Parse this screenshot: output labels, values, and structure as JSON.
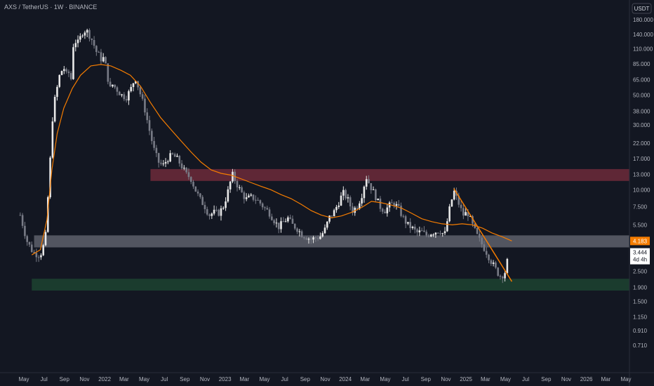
{
  "chart_data": {
    "type": "candlestick",
    "title": "AXS / TetherUS · 1W · BINANCE",
    "currency": "USDT",
    "scale": "log",
    "ylim": [
      0.6,
      190
    ],
    "y_ticks": [
      "180.000",
      "140.000",
      "110.000",
      "85.000",
      "65.000",
      "50.000",
      "38.000",
      "30.000",
      "22.000",
      "17.000",
      "13.000",
      "10.000",
      "7.500",
      "5.500",
      "4.183",
      "3.444",
      "2.500",
      "1.900",
      "1.500",
      "1.150",
      "0.910",
      "0.710"
    ],
    "y_tick_values": [
      180,
      140,
      110,
      85,
      65,
      50,
      38,
      30,
      22,
      17,
      13,
      10,
      7.5,
      5.5,
      4.183,
      3.444,
      2.5,
      1.9,
      1.5,
      1.15,
      0.91,
      0.71
    ],
    "x_ticks": [
      "May",
      "Jul",
      "Sep",
      "Nov",
      "2022",
      "Mar",
      "May",
      "Jul",
      "Sep",
      "Nov",
      "2023",
      "Mar",
      "May",
      "Jul",
      "Sep",
      "Nov",
      "2024",
      "Mar",
      "May",
      "Jul",
      "Sep",
      "Nov",
      "2025",
      "Mar",
      "May",
      "Jul",
      "Sep",
      "Nov",
      "2026",
      "Mar",
      "May"
    ],
    "x_tick_months": [
      "2021-05",
      "2021-07",
      "2021-09",
      "2021-11",
      "2022-01",
      "2022-03",
      "2022-05",
      "2022-07",
      "2022-09",
      "2022-11",
      "2023-01",
      "2023-03",
      "2023-05",
      "2023-07",
      "2023-09",
      "2023-11",
      "2024-01",
      "2024-03",
      "2024-05",
      "2024-07",
      "2024-09",
      "2024-11",
      "2025-01",
      "2025-03",
      "2025-05",
      "2025-07",
      "2025-09",
      "2025-11",
      "2026-01",
      "2026-03",
      "2026-05"
    ],
    "xlim": [
      "2021-04-15",
      "2026-06-15"
    ],
    "grid": false,
    "last_price": {
      "value": "3.444",
      "countdown": "4d 4h"
    },
    "ma_price": {
      "value": "4.183"
    },
    "zones": [
      {
        "kind": "resistance",
        "low": 11.6,
        "high": 14.2,
        "start": "2022-05-20",
        "end": "2026-06-15",
        "color": "#7a2e3d"
      },
      {
        "kind": "support",
        "low": 3.75,
        "high": 4.6,
        "start": "2021-06-01",
        "end": "2026-06-15",
        "color": "#868993"
      },
      {
        "kind": "demand",
        "low": 1.8,
        "high": 2.2,
        "start": "2021-05-25",
        "end": "2026-06-15",
        "color": "#1f4a33"
      }
    ],
    "trendline": {
      "from": {
        "date": "2024-11-25",
        "value": 10.2
      },
      "to": {
        "date": "2025-05-20",
        "value": 2.1
      },
      "color": "#f57c00"
    },
    "moving_average": {
      "color": "#f57c00",
      "points": [
        [
          "2021-05-25",
          3.3
        ],
        [
          "2021-06-20",
          3.6
        ],
        [
          "2021-07-10",
          6
        ],
        [
          "2021-07-25",
          14
        ],
        [
          "2021-08-10",
          26
        ],
        [
          "2021-08-30",
          40
        ],
        [
          "2021-09-25",
          56
        ],
        [
          "2021-10-20",
          70
        ],
        [
          "2021-11-20",
          82
        ],
        [
          "2021-12-20",
          84
        ],
        [
          "2022-01-20",
          82
        ],
        [
          "2022-02-20",
          76
        ],
        [
          "2022-03-20",
          70
        ],
        [
          "2022-04-20",
          58
        ],
        [
          "2022-05-20",
          44
        ],
        [
          "2022-06-20",
          34
        ],
        [
          "2022-07-20",
          28
        ],
        [
          "2022-08-20",
          23
        ],
        [
          "2022-09-20",
          19
        ],
        [
          "2022-10-20",
          16
        ],
        [
          "2022-11-20",
          14
        ],
        [
          "2022-12-20",
          13.2
        ],
        [
          "2023-01-20",
          12.8
        ],
        [
          "2023-02-20",
          12
        ],
        [
          "2023-03-20",
          11.3
        ],
        [
          "2023-04-20",
          10.6
        ],
        [
          "2023-05-20",
          10
        ],
        [
          "2023-06-20",
          9.2
        ],
        [
          "2023-07-20",
          8.6
        ],
        [
          "2023-08-20",
          7.8
        ],
        [
          "2023-09-20",
          7
        ],
        [
          "2023-10-20",
          6.5
        ],
        [
          "2023-11-20",
          6.2
        ],
        [
          "2023-12-20",
          6.4
        ],
        [
          "2024-01-20",
          6.8
        ],
        [
          "2024-02-20",
          7.4
        ],
        [
          "2024-03-20",
          8.2
        ],
        [
          "2024-04-20",
          8
        ],
        [
          "2024-05-20",
          7.7
        ],
        [
          "2024-06-20",
          7.3
        ],
        [
          "2024-07-20",
          6.7
        ],
        [
          "2024-08-20",
          6.1
        ],
        [
          "2024-09-20",
          5.8
        ],
        [
          "2024-10-20",
          5.6
        ],
        [
          "2024-11-20",
          5.5
        ],
        [
          "2024-12-20",
          5.6
        ],
        [
          "2025-01-20",
          5.5
        ],
        [
          "2025-02-20",
          5.2
        ],
        [
          "2025-03-20",
          4.8
        ],
        [
          "2025-04-20",
          4.5
        ],
        [
          "2025-05-20",
          4.183
        ]
      ]
    },
    "closes": [
      [
        "2021-04-20",
        6.5
      ],
      [
        "2021-05-10",
        4.2
      ],
      [
        "2021-05-30",
        3.4
      ],
      [
        "2021-06-20",
        3.3
      ],
      [
        "2021-07-05",
        4.2
      ],
      [
        "2021-07-12",
        8
      ],
      [
        "2021-07-19",
        15
      ],
      [
        "2021-07-26",
        32
      ],
      [
        "2021-08-02",
        45
      ],
      [
        "2021-08-09",
        55
      ],
      [
        "2021-08-16",
        68
      ],
      [
        "2021-08-23",
        75
      ],
      [
        "2021-08-30",
        80
      ],
      [
        "2021-09-06",
        70
      ],
      [
        "2021-09-13",
        75
      ],
      [
        "2021-09-20",
        60
      ],
      [
        "2021-09-27",
        115
      ],
      [
        "2021-10-04",
        125
      ],
      [
        "2021-10-11",
        120
      ],
      [
        "2021-10-18",
        130
      ],
      [
        "2021-10-25",
        145
      ],
      [
        "2021-11-01",
        150
      ],
      [
        "2021-11-08",
        148
      ],
      [
        "2021-11-15",
        140
      ],
      [
        "2021-11-22",
        130
      ],
      [
        "2021-11-29",
        118
      ],
      [
        "2021-12-06",
        105
      ],
      [
        "2021-12-13",
        100
      ],
      [
        "2021-12-20",
        92
      ],
      [
        "2021-12-27",
        95
      ],
      [
        "2022-01-03",
        85
      ],
      [
        "2022-01-10",
        68
      ],
      [
        "2022-01-17",
        55
      ],
      [
        "2022-01-24",
        60
      ],
      [
        "2022-02-07",
        55
      ],
      [
        "2022-02-21",
        50
      ],
      [
        "2022-03-07",
        48
      ],
      [
        "2022-03-21",
        55
      ],
      [
        "2022-04-04",
        68
      ],
      [
        "2022-04-18",
        52
      ],
      [
        "2022-05-02",
        40
      ],
      [
        "2022-05-16",
        28
      ],
      [
        "2022-05-30",
        20
      ],
      [
        "2022-06-13",
        16
      ],
      [
        "2022-06-27",
        15
      ],
      [
        "2022-07-11",
        17
      ],
      [
        "2022-07-25",
        18
      ],
      [
        "2022-08-08",
        17
      ],
      [
        "2022-08-22",
        15
      ],
      [
        "2022-09-05",
        13
      ],
      [
        "2022-09-19",
        12.2
      ],
      [
        "2022-10-03",
        10
      ],
      [
        "2022-10-17",
        8.5
      ],
      [
        "2022-10-31",
        7.6
      ],
      [
        "2022-11-14",
        6.5
      ],
      [
        "2022-11-28",
        6.8
      ],
      [
        "2022-12-12",
        6.7
      ],
      [
        "2022-12-26",
        7.4
      ],
      [
        "2023-01-09",
        9.5
      ],
      [
        "2023-01-23",
        13
      ],
      [
        "2023-02-06",
        11
      ],
      [
        "2023-02-20",
        9.5
      ],
      [
        "2023-03-06",
        8.5
      ],
      [
        "2023-03-20",
        8.8
      ],
      [
        "2023-04-03",
        8.6
      ],
      [
        "2023-04-17",
        8
      ],
      [
        "2023-05-01",
        7.3
      ],
      [
        "2023-05-15",
        6.8
      ],
      [
        "2023-05-29",
        6
      ],
      [
        "2023-06-12",
        5.3
      ],
      [
        "2023-06-26",
        5.7
      ],
      [
        "2023-07-10",
        6.2
      ],
      [
        "2023-07-24",
        5.5
      ],
      [
        "2023-08-07",
        5.2
      ],
      [
        "2023-08-21",
        4.7
      ],
      [
        "2023-09-04",
        4.5
      ],
      [
        "2023-09-18",
        4.3
      ],
      [
        "2023-10-02",
        4.4
      ],
      [
        "2023-10-16",
        4.5
      ],
      [
        "2023-10-30",
        5
      ],
      [
        "2023-11-13",
        6.2
      ],
      [
        "2023-11-27",
        6.8
      ],
      [
        "2023-12-11",
        8
      ],
      [
        "2023-12-25",
        9.5
      ],
      [
        "2024-01-08",
        8.5
      ],
      [
        "2024-01-22",
        7
      ],
      [
        "2024-02-05",
        7.5
      ],
      [
        "2024-02-19",
        9
      ],
      [
        "2024-03-04",
        12.5
      ],
      [
        "2024-03-18",
        10.5
      ],
      [
        "2024-04-01",
        9
      ],
      [
        "2024-04-15",
        7.5
      ],
      [
        "2024-04-29",
        7
      ],
      [
        "2024-05-13",
        7.6
      ],
      [
        "2024-05-27",
        8
      ],
      [
        "2024-06-10",
        7.3
      ],
      [
        "2024-06-24",
        6.2
      ],
      [
        "2024-07-08",
        5.5
      ],
      [
        "2024-07-22",
        5.2
      ],
      [
        "2024-08-05",
        4.8
      ],
      [
        "2024-08-19",
        4.9
      ],
      [
        "2024-09-02",
        4.6
      ],
      [
        "2024-09-16",
        4.8
      ],
      [
        "2024-09-30",
        4.9
      ],
      [
        "2024-10-14",
        5
      ],
      [
        "2024-10-28",
        4.6
      ],
      [
        "2024-11-11",
        7
      ],
      [
        "2024-11-25",
        9.8
      ],
      [
        "2024-12-09",
        8
      ],
      [
        "2024-12-23",
        6.5
      ],
      [
        "2025-01-06",
        6.8
      ],
      [
        "2025-01-20",
        5.5
      ],
      [
        "2025-02-03",
        4.6
      ],
      [
        "2025-02-17",
        4
      ],
      [
        "2025-03-03",
        3.5
      ],
      [
        "2025-03-17",
        3
      ],
      [
        "2025-03-31",
        2.6
      ],
      [
        "2025-04-14",
        2.3
      ],
      [
        "2025-04-28",
        2.4
      ],
      [
        "2025-05-12",
        3.444
      ]
    ]
  }
}
